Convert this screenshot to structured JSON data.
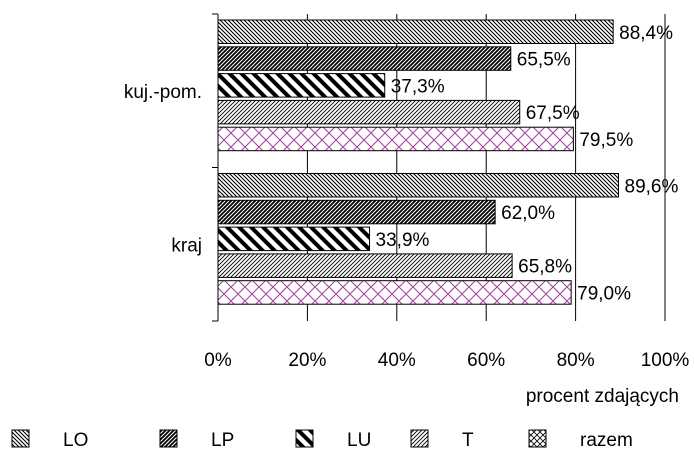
{
  "chart_data": {
    "type": "bar",
    "orientation": "horizontal",
    "categories": [
      "kuj.-pom.",
      "kraj"
    ],
    "series": [
      {
        "name": "LO",
        "values": [
          88.4,
          89.6
        ],
        "labels": [
          "88,4%",
          "89,6%"
        ],
        "pattern": "fine-diagonal-down",
        "color": "#000000"
      },
      {
        "name": "LP",
        "values": [
          65.5,
          62.0
        ],
        "labels": [
          "65,5%",
          "62,0%"
        ],
        "pattern": "dense-diagonal-up",
        "color": "#000000"
      },
      {
        "name": "LU",
        "values": [
          37.3,
          33.9
        ],
        "labels": [
          "37,3%",
          "33,9%"
        ],
        "pattern": "wide-diagonal-down",
        "color": "#000000"
      },
      {
        "name": "T",
        "values": [
          67.5,
          65.8
        ],
        "labels": [
          "67,5%",
          "65,8%"
        ],
        "pattern": "fine-diagonal-up",
        "color": "#000000"
      },
      {
        "name": "razem",
        "values": [
          79.5,
          79.0
        ],
        "labels": [
          "79,5%",
          "79,0%"
        ],
        "pattern": "crosshatch",
        "color": "#a040a0"
      }
    ],
    "x_ticks": [
      "0%",
      "20%",
      "40%",
      "60%",
      "80%",
      "100%"
    ],
    "xlim": [
      0,
      100
    ],
    "xlabel": "procent zdających",
    "ylabel": "",
    "title": "",
    "grid": "vertical",
    "legend_position": "bottom"
  }
}
